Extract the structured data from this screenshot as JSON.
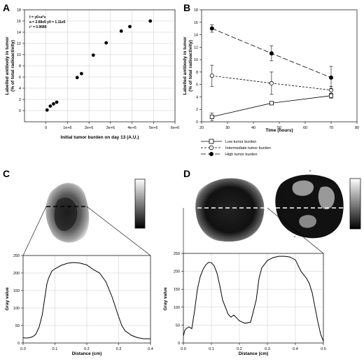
{
  "panels": {
    "A": {
      "letter": "A"
    },
    "B": {
      "letter": "B"
    },
    "C": {
      "letter": "C"
    },
    "D": {
      "letter": "D"
    }
  },
  "chart_data": [
    {
      "panel": "A",
      "type": "scatter",
      "xlabel": "Initial tumor burden on day 13 (A.U.)",
      "ylabel": [
        "Labelled antibody in tumor",
        "(% of total radioactivity)"
      ],
      "xlim": [
        -1000000,
        6000000
      ],
      "ylim": [
        -2,
        18
      ],
      "xticks": [
        0,
        1000000,
        2000000,
        3000000,
        4000000,
        5000000,
        6000000
      ],
      "xtick_labels": [
        "0",
        "1e+6",
        "2e+6",
        "3e+6",
        "4e+6",
        "5e+6",
        "6e+6"
      ],
      "yticks": [
        0,
        2,
        4,
        6,
        8,
        10,
        12,
        14,
        16,
        18
      ],
      "grid": true,
      "points": [
        {
          "x": 50000,
          "y": 0.1
        },
        {
          "x": 200000,
          "y": 0.8
        },
        {
          "x": 350000,
          "y": 1.2
        },
        {
          "x": 500000,
          "y": 1.5
        },
        {
          "x": 1450000,
          "y": 5.9
        },
        {
          "x": 1650000,
          "y": 6.6
        },
        {
          "x": 2200000,
          "y": 9.9
        },
        {
          "x": 2800000,
          "y": 12.1
        },
        {
          "x": 3500000,
          "y": 14.2
        },
        {
          "x": 3900000,
          "y": 15.0
        },
        {
          "x": 4850000,
          "y": 16.0
        }
      ],
      "annotation": [
        "f = y0+a*x",
        "a = 2.68e5   y0 = 1.11e5",
        "r² = 0.9686"
      ]
    },
    {
      "panel": "B",
      "type": "line",
      "xlabel": "Time (hours)",
      "ylabel": [
        "Labelled antibody in tumor",
        "(% of total radioactivity)"
      ],
      "xlim": [
        20,
        80
      ],
      "ylim": [
        0,
        18
      ],
      "xticks": [
        20,
        30,
        40,
        50,
        60,
        70,
        80
      ],
      "yticks": [
        0,
        2,
        4,
        6,
        8,
        10,
        12,
        14,
        16,
        18
      ],
      "x": [
        24,
        47,
        70
      ],
      "series": [
        {
          "name": "Low tumor burden",
          "marker": "square-open",
          "dash": "solid",
          "values": [
            0.8,
            3.0,
            4.2
          ],
          "err": [
            0.6,
            0.2,
            0.4
          ]
        },
        {
          "name": "Intermediate tumor burden",
          "marker": "circle-open",
          "dash": "short",
          "values": [
            7.4,
            6.2,
            5.1
          ],
          "err": [
            1.7,
            1.8,
            0.6
          ]
        },
        {
          "name": "High tumor burden",
          "marker": "circle-filled",
          "dash": "long",
          "values": [
            15.0,
            11.0,
            7.1
          ],
          "err": [
            0.6,
            1.2,
            1.8
          ]
        }
      ],
      "legend": "below"
    },
    {
      "panel": "C",
      "type": "line",
      "xlabel": "Distance (cm)",
      "ylabel": "Gray value",
      "xlim": [
        0,
        0.4
      ],
      "ylim": [
        0,
        250
      ],
      "xticks": [
        0,
        0.1,
        0.2,
        0.3,
        0.4
      ],
      "xtick_labels": [
        "0.0",
        "0.1",
        "0.2",
        "0.3",
        "0.4"
      ],
      "yticks": [
        0,
        50,
        100,
        150,
        200,
        250
      ],
      "grid": true,
      "x": [
        0,
        0.01,
        0.02,
        0.03,
        0.04,
        0.05,
        0.06,
        0.07,
        0.075,
        0.08,
        0.09,
        0.1,
        0.12,
        0.14,
        0.16,
        0.18,
        0.2,
        0.22,
        0.24,
        0.26,
        0.28,
        0.3,
        0.31,
        0.32,
        0.34,
        0.36,
        0.38,
        0.4
      ],
      "values": [
        15,
        14,
        15,
        18,
        25,
        45,
        80,
        140,
        170,
        185,
        205,
        212,
        222,
        228,
        230,
        228,
        223,
        210,
        200,
        175,
        130,
        75,
        50,
        35,
        22,
        15,
        12,
        12
      ]
    },
    {
      "panel": "D",
      "type": "line",
      "xlabel": "Distance (cm)",
      "ylabel": "Gray value",
      "xlim": [
        0,
        0.5
      ],
      "ylim": [
        0,
        250
      ],
      "xticks": [
        0,
        0.1,
        0.2,
        0.3,
        0.4,
        0.5
      ],
      "xtick_labels": [
        "0.0",
        "0.1",
        "0.2",
        "0.3",
        "0.4",
        "0.5"
      ],
      "yticks": [
        0,
        50,
        100,
        150,
        200,
        250
      ],
      "grid": true,
      "x": [
        0,
        0.005,
        0.01,
        0.02,
        0.03,
        0.04,
        0.05,
        0.06,
        0.07,
        0.08,
        0.09,
        0.1,
        0.11,
        0.12,
        0.13,
        0.14,
        0.15,
        0.16,
        0.17,
        0.18,
        0.19,
        0.2,
        0.22,
        0.24,
        0.26,
        0.27,
        0.28,
        0.3,
        0.32,
        0.34,
        0.36,
        0.38,
        0.4,
        0.42,
        0.43,
        0.44,
        0.45,
        0.46,
        0.47,
        0.48,
        0.49,
        0.5
      ],
      "values": [
        20,
        35,
        40,
        45,
        40,
        90,
        150,
        185,
        205,
        218,
        225,
        224,
        215,
        195,
        160,
        120,
        100,
        80,
        72,
        78,
        70,
        62,
        55,
        58,
        120,
        180,
        210,
        230,
        238,
        242,
        242,
        240,
        232,
        200,
        190,
        180,
        165,
        140,
        100,
        60,
        25,
        5
      ]
    }
  ],
  "annotations": {
    "stars": [
      "*",
      "*",
      "*",
      "*"
    ]
  }
}
